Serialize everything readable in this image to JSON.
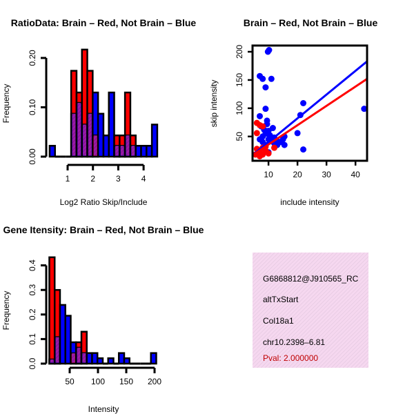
{
  "chart_data": [
    {
      "type": "bar",
      "subtype": "overlaid-histogram",
      "title": "RatioData: Brain – Red, Not Brain – Blue",
      "xlabel": "Log2 Ratio Skip/Include",
      "ylabel": "Frequency",
      "xticks": [
        1,
        2,
        3,
        4
      ],
      "yticks": [
        "0.00",
        "0.10",
        "0.20"
      ],
      "ytick_values": [
        0,
        0.1,
        0.2
      ],
      "bin_start": 0.29,
      "bin_width": 0.2125,
      "series": [
        {
          "name": "Brain",
          "color": "#ff0000",
          "values": [
            0,
            0,
            0,
            0,
            0.174,
            0.13,
            0.217,
            0.174,
            0.043,
            0,
            0,
            0,
            0.043,
            0.043,
            0.13,
            0.043,
            0,
            0,
            0,
            0
          ]
        },
        {
          "name": "Not Brain",
          "color": "#0000ff",
          "values": [
            0.022,
            0,
            0,
            0,
            0.087,
            0.109,
            0.065,
            0.087,
            0.13,
            0.087,
            0.043,
            0.13,
            0.022,
            0.022,
            0.043,
            0.022,
            0.022,
            0.022,
            0.022,
            0.065
          ]
        }
      ],
      "overlap_color": "#9a1aa8"
    },
    {
      "type": "scatter",
      "title": "Brain – Red, Not Brain – Blue",
      "xlabel": "include intensity",
      "ylabel": "skip intensity",
      "xlim": [
        4.5,
        44
      ],
      "ylim": [
        7,
        211
      ],
      "xticks": [
        10,
        20,
        30,
        40
      ],
      "yticks": [
        50,
        100,
        150,
        200
      ],
      "series": [
        {
          "name": "Not Brain",
          "color": "#0000ff",
          "points": [
            [
              9.8,
              200
            ],
            [
              10.2,
              203
            ],
            [
              7,
              157
            ],
            [
              8,
              152
            ],
            [
              11,
              152
            ],
            [
              9,
              137
            ],
            [
              9,
              99
            ],
            [
              21,
              88
            ],
            [
              22,
              109
            ],
            [
              43,
              99
            ],
            [
              20,
              56
            ],
            [
              22,
              27
            ],
            [
              7,
              86
            ],
            [
              9.5,
              78
            ],
            [
              9.5,
              72
            ],
            [
              7.5,
              68
            ],
            [
              11.5,
              65
            ],
            [
              10,
              60
            ],
            [
              9,
              55
            ],
            [
              8,
              50
            ],
            [
              7,
              45
            ],
            [
              10,
              45
            ],
            [
              11,
              42
            ],
            [
              12,
              38
            ],
            [
              13,
              35
            ],
            [
              14,
              40
            ],
            [
              15,
              45
            ],
            [
              15.5,
              50
            ],
            [
              15.5,
              35
            ],
            [
              10,
              22
            ],
            [
              8,
              40
            ],
            [
              9,
              35
            ],
            [
              12,
              48
            ],
            [
              13,
              42
            ],
            [
              8.5,
              62
            ],
            [
              10.5,
              52
            ]
          ],
          "fit": [
            [
              4.5,
              17
            ],
            [
              44,
              183
            ]
          ]
        },
        {
          "name": "Brain",
          "color": "#ff0000",
          "points": [
            [
              6,
              74
            ],
            [
              7,
              70
            ],
            [
              8,
              68
            ],
            [
              6,
              56
            ],
            [
              6,
              28
            ],
            [
              7,
              22
            ],
            [
              7,
              15
            ],
            [
              8,
              18
            ],
            [
              9,
              25
            ],
            [
              10,
              20
            ],
            [
              12,
              30
            ],
            [
              8,
              30
            ],
            [
              6.5,
              20
            ],
            [
              9,
              32
            ],
            [
              5.5,
              18
            ]
          ],
          "fit": [
            [
              4.5,
              17
            ],
            [
              44,
              152
            ]
          ]
        }
      ]
    },
    {
      "type": "bar",
      "subtype": "overlaid-histogram",
      "title": "Gene Itensity: Brain – Red, Not Brain – Blue",
      "xlabel": "Intensity",
      "ylabel": "Frequency",
      "xticks": [
        50,
        100,
        150,
        200
      ],
      "yticks": [
        "0.0",
        "0.1",
        "0.2",
        "0.3",
        "0.4"
      ],
      "ytick_values": [
        0,
        0.1,
        0.2,
        0.3,
        0.4
      ],
      "bin_start": 14,
      "bin_width": 9.45,
      "series": [
        {
          "name": "Brain",
          "color": "#ff0000",
          "values": [
            0.433,
            0.3,
            0,
            0,
            0.042,
            0.087,
            0.13,
            0,
            0,
            0,
            0,
            0,
            0,
            0,
            0,
            0,
            0,
            0,
            0,
            0
          ]
        },
        {
          "name": "Not Brain",
          "color": "#0000ff",
          "values": [
            0.017,
            0.108,
            0.239,
            0.195,
            0.087,
            0.065,
            0.043,
            0.043,
            0.043,
            0.022,
            0,
            0.022,
            0,
            0.043,
            0.022,
            0,
            0,
            0,
            0,
            0.043
          ]
        }
      ],
      "overlap_color": "#9a1aa8"
    }
  ],
  "info_panel": {
    "lines": [
      "G6868812@J910565_RC",
      "altTxStart",
      "Col18a1",
      "chr10.2398–6.81"
    ],
    "pval": "Pval: 2.000000",
    "pval_color": "#c00000",
    "background": "#f6d8f0"
  }
}
